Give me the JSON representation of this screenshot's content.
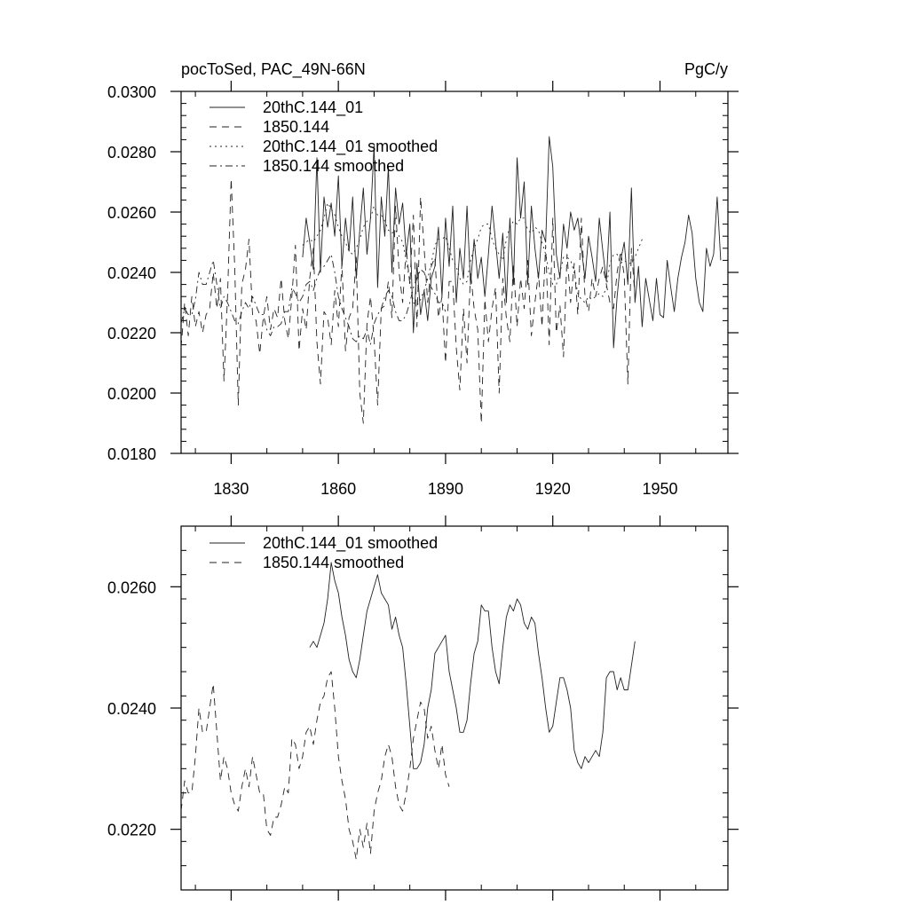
{
  "header": {
    "title": "pocToSed, PAC_49N-66N",
    "units": "PgC/y"
  },
  "chart_data": [
    {
      "type": "line",
      "title": "pocToSed, PAC_49N-66N",
      "units": "PgC/y",
      "xlim": [
        1816,
        1969
      ],
      "ylim": [
        0.018,
        0.03
      ],
      "xticks": [
        1830,
        1860,
        1890,
        1920,
        1950
      ],
      "xtick_labels": [
        "1830",
        "1860",
        "1890",
        "1920",
        "1950"
      ],
      "yticks": [
        0.018,
        0.02,
        0.022,
        0.024,
        0.026,
        0.028,
        0.03
      ],
      "ytick_labels": [
        "0.0180",
        "0.0200",
        "0.0220",
        "0.0240",
        "0.0260",
        "0.0280",
        "0.0300"
      ],
      "legend_position": "top-left",
      "series": [
        {
          "name": "20thC.144_01",
          "style": "solid",
          "start": 1850,
          "values": [
            0.0245,
            0.0258,
            0.025,
            0.0241,
            0.0278,
            0.024,
            0.0265,
            0.0255,
            0.0263,
            0.0252,
            0.0272,
            0.0242,
            0.0258,
            0.0247,
            0.0265,
            0.0238,
            0.0254,
            0.0268,
            0.0246,
            0.0258,
            0.0282,
            0.0235,
            0.0265,
            0.0252,
            0.0275,
            0.024,
            0.0268,
            0.0256,
            0.0263,
            0.0246,
            0.0256,
            0.022,
            0.0243,
            0.0226,
            0.0234,
            0.0224,
            0.0238,
            0.0242,
            0.0255,
            0.0232,
            0.0258,
            0.0242,
            0.0262,
            0.023,
            0.0248,
            0.0238,
            0.0262,
            0.0236,
            0.0251,
            0.0238,
            0.0245,
            0.0232,
            0.0246,
            0.0262,
            0.025,
            0.0238,
            0.0253,
            0.023,
            0.0258,
            0.0236,
            0.0278,
            0.0258,
            0.027,
            0.0236,
            0.0262,
            0.0248,
            0.0238,
            0.0254,
            0.025,
            0.0285,
            0.0275,
            0.0246,
            0.0238,
            0.0256,
            0.0248,
            0.026,
            0.0254,
            0.0258,
            0.0248,
            0.0238,
            0.0252,
            0.0245,
            0.0237,
            0.0258,
            0.0247,
            0.0237,
            0.026,
            0.0215,
            0.0232,
            0.0244,
            0.025,
            0.0236,
            0.0268,
            0.023,
            0.0242,
            0.0222,
            0.0238,
            0.0231,
            0.0224,
            0.0238,
            0.0226,
            0.0225,
            0.0244,
            0.0235,
            0.0227,
            0.0238,
            0.0245,
            0.025,
            0.0259,
            0.0253,
            0.0238,
            0.023,
            0.0227,
            0.0248,
            0.0242,
            0.0246,
            0.0265,
            0.0244
          ]
        },
        {
          "name": "1850.144",
          "style": "dashed",
          "start": 1816,
          "values": [
            0.0215,
            0.023,
            0.0219,
            0.0232,
            0.0222,
            0.0227,
            0.022,
            0.0226,
            0.0228,
            0.024,
            0.0228,
            0.0238,
            0.0204,
            0.0232,
            0.0271,
            0.0242,
            0.0196,
            0.0236,
            0.0241,
            0.0251,
            0.0226,
            0.0224,
            0.0213,
            0.0225,
            0.0232,
            0.0221,
            0.0228,
            0.0225,
            0.0238,
            0.0224,
            0.0218,
            0.0232,
            0.0249,
            0.0214,
            0.0228,
            0.0221,
            0.0238,
            0.0248,
            0.0217,
            0.0203,
            0.0227,
            0.0225,
            0.0216,
            0.0234,
            0.0222,
            0.0243,
            0.0214,
            0.0225,
            0.0228,
            0.0245,
            0.02,
            0.019,
            0.0223,
            0.0232,
            0.0218,
            0.0196,
            0.0228,
            0.0229,
            0.0237,
            0.0225,
            0.0262,
            0.024,
            0.023,
            0.0248,
            0.0236,
            0.0259,
            0.0222,
            0.0265,
            0.0248,
            0.023,
            0.0242,
            0.0245,
            0.0225,
            0.0232,
            0.021,
            0.0237,
            0.0237,
            0.0215,
            0.0201,
            0.0228,
            0.021,
            0.024,
            0.0228,
            0.0221,
            0.019,
            0.0231,
            0.0217,
            0.0228,
            0.0235,
            0.02,
            0.0238,
            0.0225,
            0.0217,
            0.0243,
            0.0222,
            0.0238,
            0.0228,
            0.0244,
            0.0219,
            0.023,
            0.024,
            0.0222,
            0.0249,
            0.0216,
            0.0258,
            0.022,
            0.0229,
            0.0212,
            0.0246,
            0.023,
            0.0243,
            0.0226,
            0.0258,
            0.0232,
            0.0227,
            0.0238,
            0.0232,
            0.0238,
            0.0242,
            0.0236,
            0.023,
            0.0228,
            0.024,
            0.0247,
            0.0239,
            0.0203,
            0.0248,
            0.0232
          ]
        },
        {
          "name": "20thC.144_01 smoothed",
          "style": "dotted",
          "start": 1850,
          "values": [
            0.0249,
            0.025,
            0.0251,
            0.025,
            0.0252,
            0.0254,
            0.0258,
            0.0263,
            0.0261,
            0.0259,
            0.0255,
            0.0252,
            0.025,
            0.0247,
            0.0246,
            0.0248,
            0.0251,
            0.0255,
            0.0257,
            0.0258,
            0.0262,
            0.0259,
            0.0259,
            0.0257,
            0.0254,
            0.0253,
            0.0254,
            0.0252,
            0.025,
            0.0244,
            0.0237,
            0.023,
            0.0229,
            0.0231,
            0.0234,
            0.0238,
            0.0243,
            0.0249,
            0.0251,
            0.0251,
            0.0252,
            0.0248,
            0.0244,
            0.0242,
            0.0238,
            0.0236,
            0.0237,
            0.0244,
            0.0248,
            0.0251,
            0.0255,
            0.0256,
            0.0256,
            0.0251,
            0.0248,
            0.0246,
            0.0244,
            0.0251,
            0.0255,
            0.0257,
            0.0256,
            0.0258,
            0.0258,
            0.0254,
            0.0253,
            0.0255,
            0.0254,
            0.025,
            0.0246,
            0.024,
            0.0236,
            0.0236,
            0.024,
            0.0245,
            0.0245,
            0.0244,
            0.024,
            0.0233,
            0.0231,
            0.023,
            0.0232,
            0.0231,
            0.0232,
            0.0233,
            0.0232,
            0.0235,
            0.0243,
            0.0246,
            0.0246,
            0.0243,
            0.0244,
            0.0243,
            0.0243,
            0.0245,
            0.0248,
            0.0251
          ]
        },
        {
          "name": "1850.144 smoothed",
          "style": "dashdot",
          "start": 1816,
          "values": [
            0.0223,
            0.0228,
            0.0226,
            0.0226,
            0.0231,
            0.024,
            0.0236,
            0.0236,
            0.024,
            0.0244,
            0.0236,
            0.0228,
            0.0232,
            0.023,
            0.0227,
            0.0224,
            0.0223,
            0.0227,
            0.023,
            0.0228,
            0.0232,
            0.0229,
            0.0226,
            0.0226,
            0.0221,
            0.0219,
            0.0222,
            0.0222,
            0.0223,
            0.0227,
            0.0227,
            0.0235,
            0.0233,
            0.023,
            0.0232,
            0.0236,
            0.0237,
            0.0234,
            0.0238,
            0.0241,
            0.0242,
            0.0244,
            0.0246,
            0.024,
            0.0232,
            0.0228,
            0.0225,
            0.0222,
            0.0218,
            0.0217,
            0.0219,
            0.0218,
            0.0221,
            0.0216,
            0.0223,
            0.0226,
            0.0228,
            0.0232,
            0.0234,
            0.0232,
            0.0227,
            0.0224,
            0.0224,
            0.0226,
            0.023,
            0.0235,
            0.0238,
            0.0241,
            0.024,
            0.0237,
            0.0235,
            0.0233,
            0.023,
            0.023,
            0.0227
          ]
        }
      ]
    },
    {
      "type": "line",
      "xlim": [
        1816,
        1969
      ],
      "ylim": [
        0.021,
        0.027
      ],
      "xticks": [
        1830,
        1860,
        1890,
        1920,
        1950
      ],
      "yticks": [
        0.022,
        0.024,
        0.026
      ],
      "ytick_labels": [
        "0.0220",
        "0.0240",
        "0.0260"
      ],
      "legend_position": "top-left",
      "series": [
        {
          "name": "20thC.144_01 smoothed",
          "style": "solid",
          "start": 1852,
          "values": [
            0.025,
            0.0251,
            0.025,
            0.0252,
            0.0254,
            0.0258,
            0.0264,
            0.0261,
            0.0259,
            0.0255,
            0.0252,
            0.0248,
            0.0246,
            0.0245,
            0.0248,
            0.0252,
            0.0256,
            0.0258,
            0.026,
            0.0262,
            0.0259,
            0.0258,
            0.0257,
            0.0253,
            0.0255,
            0.0252,
            0.025,
            0.0244,
            0.0237,
            0.023,
            0.023,
            0.0231,
            0.0234,
            0.024,
            0.0243,
            0.0249,
            0.025,
            0.0251,
            0.0252,
            0.0246,
            0.0243,
            0.024,
            0.0236,
            0.0236,
            0.0238,
            0.0244,
            0.0249,
            0.0251,
            0.0257,
            0.0256,
            0.0256,
            0.025,
            0.0246,
            0.0244,
            0.025,
            0.0255,
            0.0257,
            0.0256,
            0.0258,
            0.0257,
            0.0254,
            0.0253,
            0.0255,
            0.0254,
            0.0249,
            0.0245,
            0.024,
            0.0236,
            0.0237,
            0.0241,
            0.0245,
            0.0245,
            0.0243,
            0.024,
            0.0233,
            0.0231,
            0.023,
            0.0232,
            0.0231,
            0.0232,
            0.0233,
            0.0232,
            0.0236,
            0.0245,
            0.0246,
            0.0246,
            0.0243,
            0.0245,
            0.0243,
            0.0243,
            0.0247,
            0.0251
          ]
        },
        {
          "name": "1850.144 smoothed",
          "style": "dashed",
          "start": 1816,
          "values": [
            0.0223,
            0.0228,
            0.0226,
            0.0226,
            0.0232,
            0.024,
            0.0236,
            0.0236,
            0.024,
            0.0244,
            0.0236,
            0.0228,
            0.0232,
            0.023,
            0.0226,
            0.0224,
            0.0223,
            0.0227,
            0.023,
            0.0227,
            0.0232,
            0.0229,
            0.0226,
            0.0226,
            0.022,
            0.0219,
            0.0222,
            0.0222,
            0.0224,
            0.0227,
            0.0226,
            0.0235,
            0.0234,
            0.023,
            0.0232,
            0.0236,
            0.0237,
            0.0234,
            0.0238,
            0.0241,
            0.0242,
            0.0245,
            0.0246,
            0.024,
            0.0232,
            0.0228,
            0.0225,
            0.022,
            0.0218,
            0.0215,
            0.022,
            0.0217,
            0.0221,
            0.0216,
            0.0223,
            0.0226,
            0.0228,
            0.0232,
            0.0234,
            0.0232,
            0.0227,
            0.0224,
            0.0223,
            0.0226,
            0.023,
            0.0235,
            0.0238,
            0.0241,
            0.024,
            0.0235,
            0.0237,
            0.0233,
            0.023,
            0.0234,
            0.0229,
            0.0227
          ]
        }
      ]
    }
  ]
}
